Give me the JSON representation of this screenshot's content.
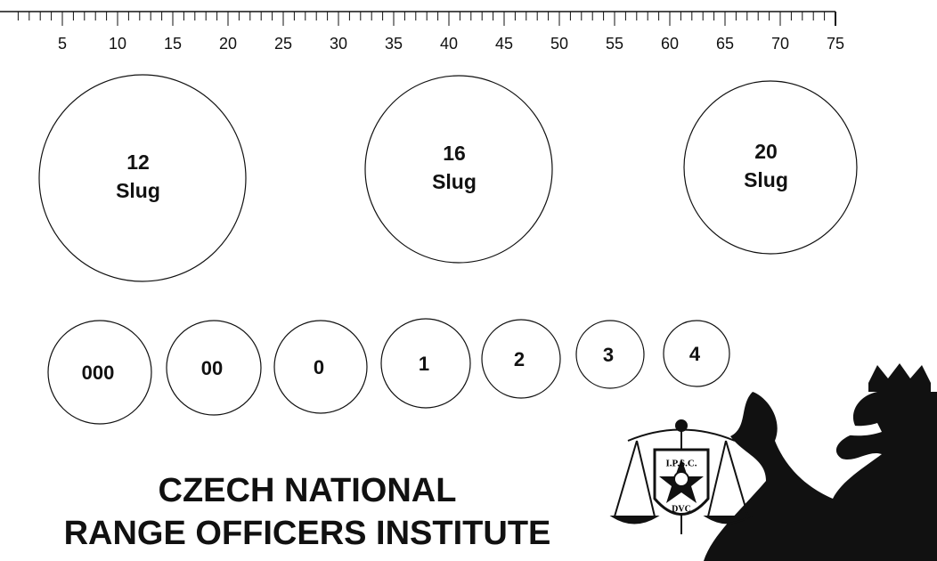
{
  "ruler": {
    "labels": [
      "5",
      "10",
      "15",
      "20",
      "25",
      "30",
      "35",
      "40",
      "45",
      "50",
      "55",
      "60",
      "65",
      "70",
      "75"
    ]
  },
  "large_circles": [
    {
      "lines": [
        "12",
        "Slug"
      ]
    },
    {
      "lines": [
        "16",
        "Slug"
      ]
    },
    {
      "lines": [
        "20",
        "Slug"
      ]
    }
  ],
  "small_circles": [
    {
      "label": "000"
    },
    {
      "label": "00"
    },
    {
      "label": "0"
    },
    {
      "label": "1"
    },
    {
      "label": "2"
    },
    {
      "label": "3"
    },
    {
      "label": "4"
    }
  ],
  "title": {
    "lines": [
      "CZECH NATIONAL",
      "RANGE OFFICERS INSTITUTE"
    ]
  },
  "logo": {
    "top": "I.P.S.C.",
    "bottom": "DVC"
  }
}
